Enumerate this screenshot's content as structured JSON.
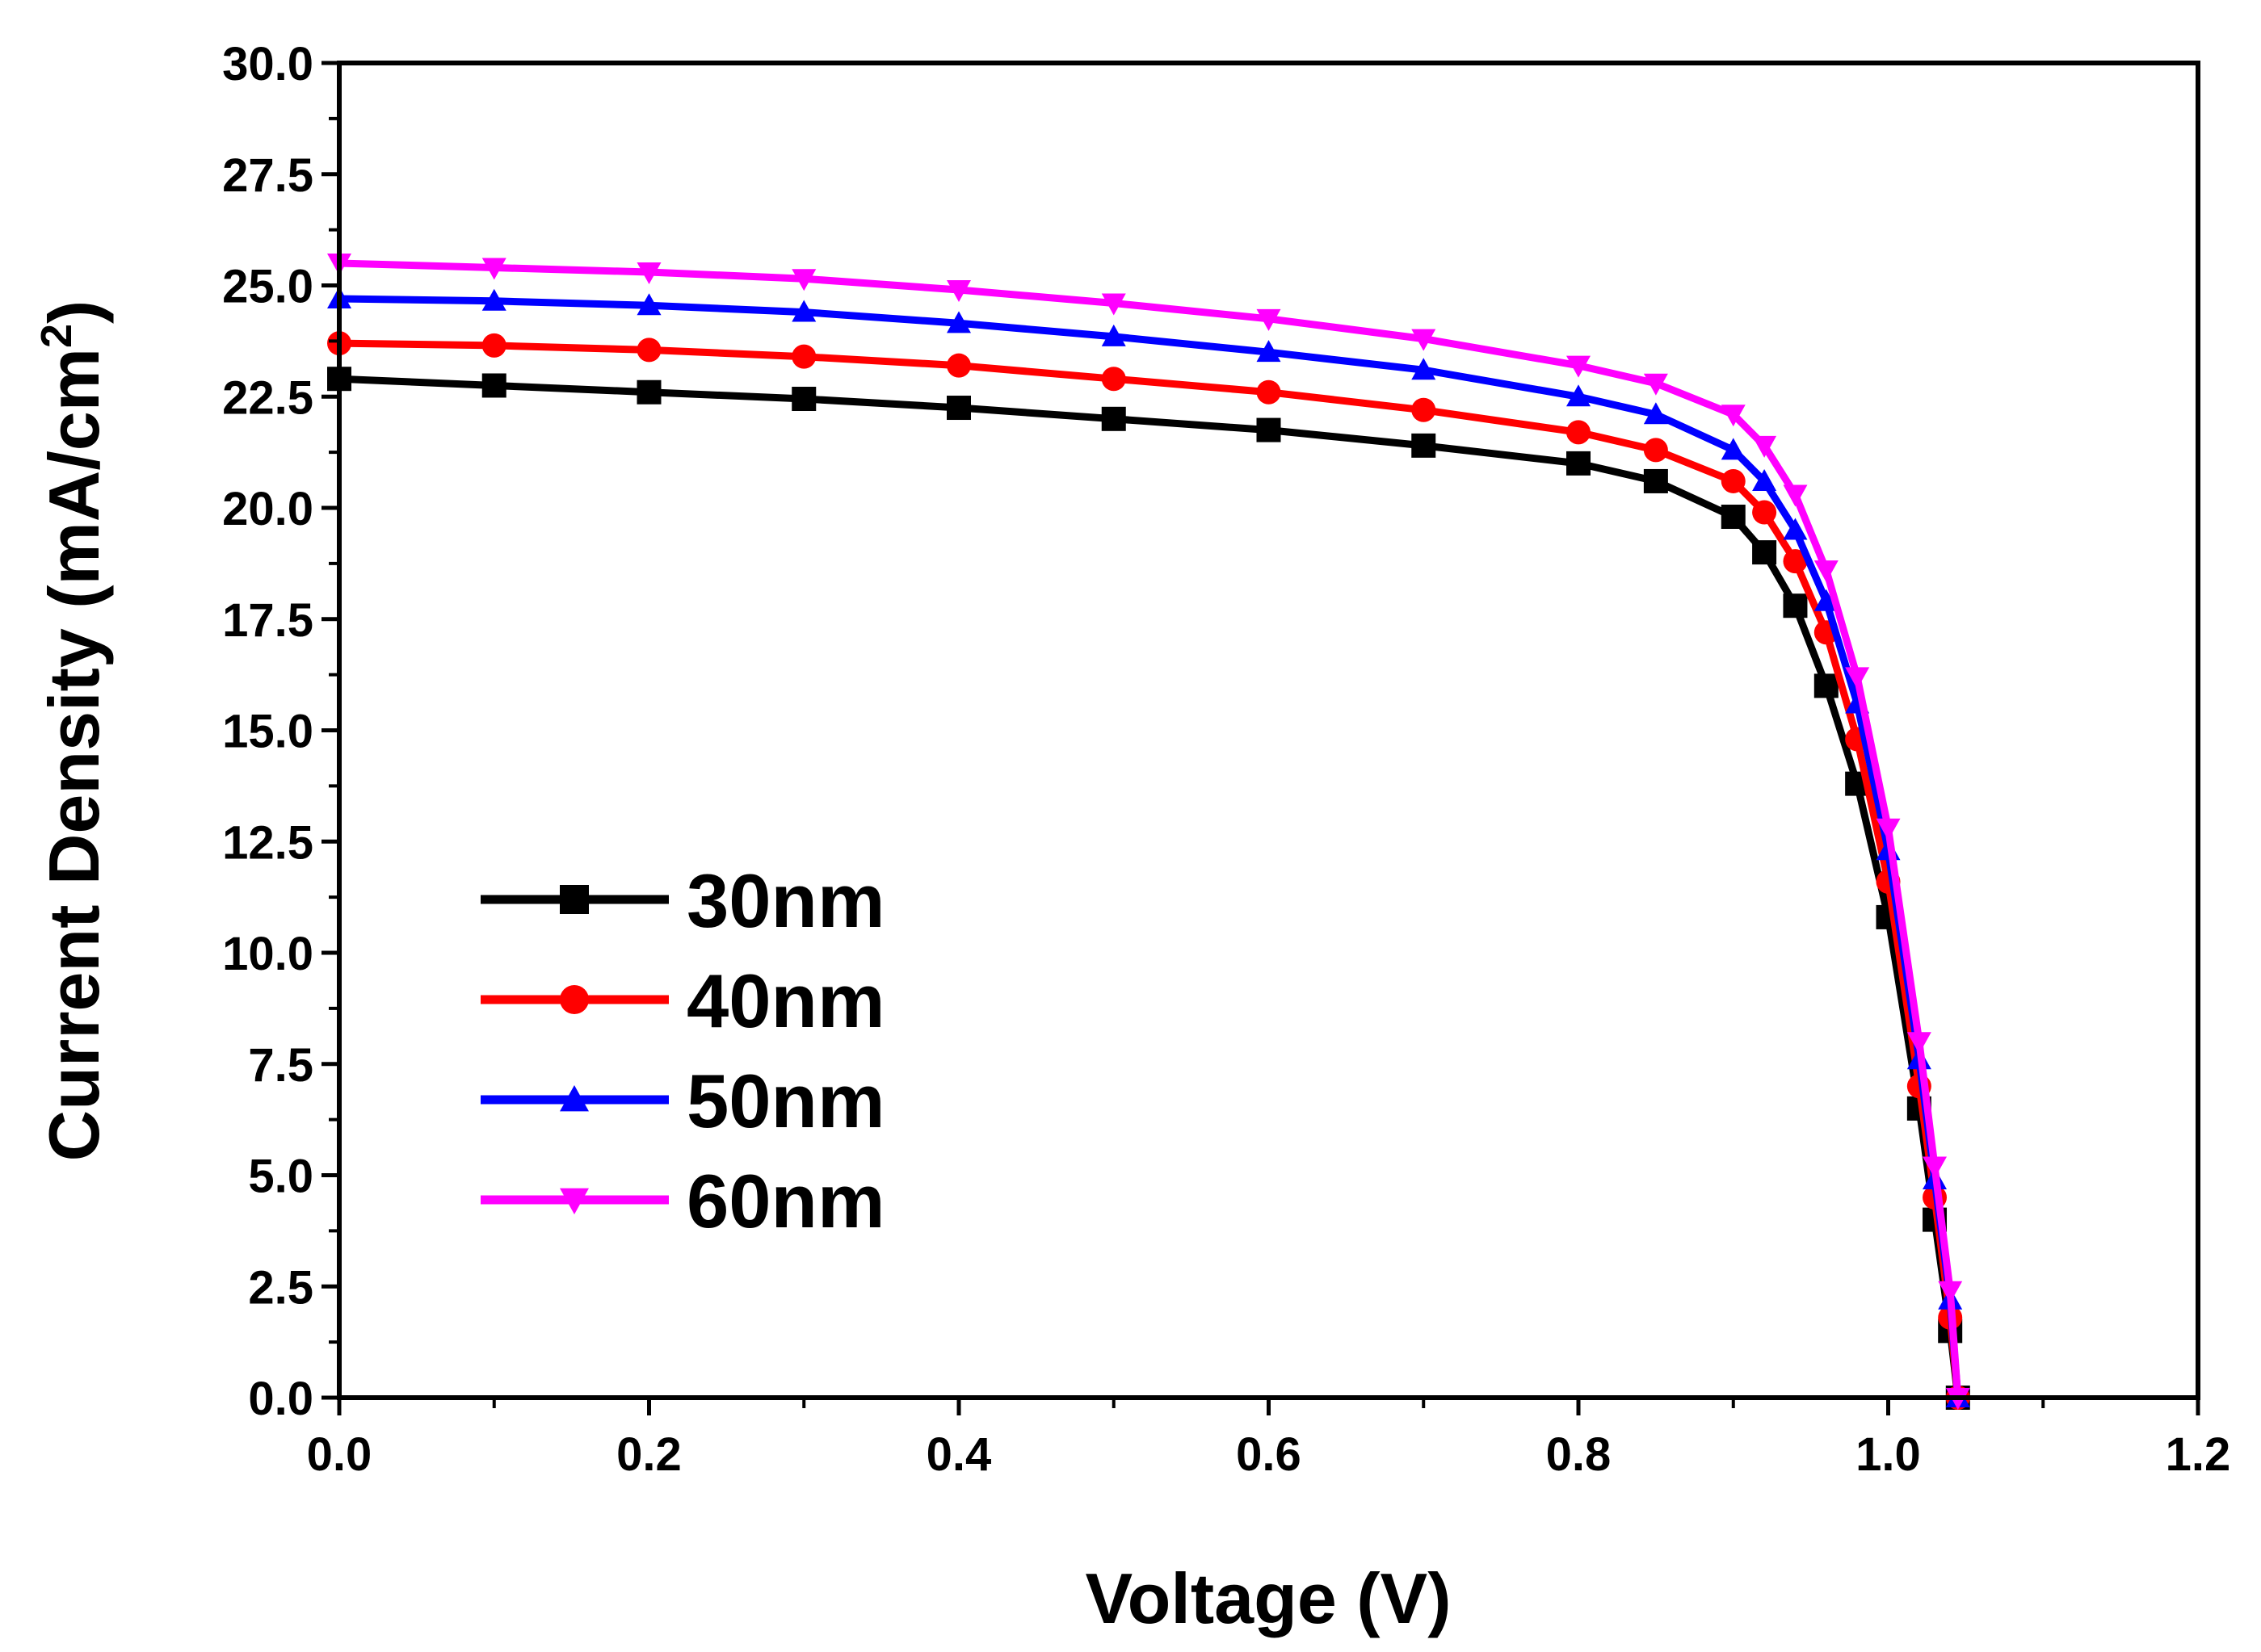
{
  "chart_data": {
    "type": "line",
    "title": "",
    "xlabel": "Voltage (V)",
    "ylabel_main": "Current Density (mA/cm",
    "ylabel_sup": "2",
    "ylabel_close": ")",
    "xlim": [
      0.0,
      1.2
    ],
    "ylim": [
      0.0,
      30.0
    ],
    "x_ticks": [
      "0.0",
      "0.2",
      "0.4",
      "0.6",
      "0.8",
      "1.0",
      "1.2"
    ],
    "y_ticks": [
      "0.0",
      "2.5",
      "5.0",
      "7.5",
      "10.0",
      "12.5",
      "15.0",
      "17.5",
      "20.0",
      "22.5",
      "25.0",
      "27.5",
      "30.0"
    ],
    "grid": false,
    "legend_position": "center-left",
    "series": [
      {
        "name": "30nm",
        "color": "#000000",
        "marker": "square",
        "x": [
          0.0,
          0.1,
          0.2,
          0.3,
          0.4,
          0.5,
          0.6,
          0.7,
          0.8,
          0.85,
          0.9,
          0.92,
          0.94,
          0.96,
          0.98,
          1.0,
          1.02,
          1.03,
          1.04,
          1.045
        ],
        "y": [
          22.9,
          22.75,
          22.6,
          22.45,
          22.25,
          22.0,
          21.75,
          21.4,
          21.0,
          20.6,
          19.8,
          19.0,
          17.8,
          16.0,
          13.8,
          10.8,
          6.5,
          4.0,
          1.5,
          0.0
        ]
      },
      {
        "name": "40nm",
        "color": "#ff0000",
        "marker": "circle",
        "x": [
          0.0,
          0.1,
          0.2,
          0.3,
          0.4,
          0.5,
          0.6,
          0.7,
          0.8,
          0.85,
          0.9,
          0.92,
          0.94,
          0.96,
          0.98,
          1.0,
          1.02,
          1.03,
          1.04,
          1.045
        ],
        "y": [
          23.7,
          23.65,
          23.55,
          23.4,
          23.2,
          22.9,
          22.6,
          22.2,
          21.7,
          21.3,
          20.6,
          19.9,
          18.8,
          17.2,
          14.8,
          11.6,
          7.0,
          4.5,
          1.8,
          0.0
        ]
      },
      {
        "name": "50nm",
        "color": "#0000ff",
        "marker": "triangle-up",
        "x": [
          0.0,
          0.1,
          0.2,
          0.3,
          0.4,
          0.5,
          0.6,
          0.7,
          0.8,
          0.85,
          0.9,
          0.92,
          0.94,
          0.96,
          0.98,
          1.0,
          1.02,
          1.03,
          1.04,
          1.045
        ],
        "y": [
          24.7,
          24.65,
          24.55,
          24.4,
          24.15,
          23.85,
          23.5,
          23.1,
          22.5,
          22.1,
          21.3,
          20.6,
          19.5,
          17.9,
          15.6,
          12.3,
          7.6,
          4.9,
          2.2,
          0.0
        ]
      },
      {
        "name": "60nm",
        "color": "#ff00ff",
        "marker": "triangle-down",
        "x": [
          0.0,
          0.1,
          0.2,
          0.3,
          0.4,
          0.5,
          0.6,
          0.7,
          0.8,
          0.85,
          0.9,
          0.92,
          0.94,
          0.96,
          0.98,
          1.0,
          1.02,
          1.03,
          1.04,
          1.045
        ],
        "y": [
          25.5,
          25.4,
          25.3,
          25.15,
          24.9,
          24.6,
          24.25,
          23.8,
          23.2,
          22.8,
          22.1,
          21.4,
          20.3,
          18.6,
          16.2,
          12.8,
          8.0,
          5.2,
          2.4,
          0.0
        ]
      }
    ]
  }
}
